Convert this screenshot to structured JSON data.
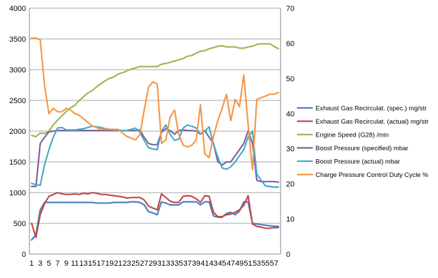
{
  "chart_data": {
    "type": "line",
    "title": "",
    "xlabel": "",
    "ylabel": "",
    "y2label": "",
    "x": [
      1,
      2,
      3,
      4,
      5,
      6,
      7,
      8,
      9,
      10,
      11,
      12,
      13,
      14,
      15,
      16,
      17,
      18,
      19,
      20,
      21,
      22,
      23,
      24,
      25,
      26,
      27,
      28,
      29,
      30,
      31,
      32,
      33,
      34,
      35,
      36,
      37,
      38,
      39,
      40,
      41,
      42,
      43,
      44,
      45,
      46,
      47,
      48,
      49,
      50,
      51,
      52,
      53,
      54,
      55,
      56,
      57,
      58
    ],
    "x_tick_labels": [
      "1",
      "3",
      "5",
      "7",
      "9",
      "11",
      "13",
      "15",
      "17",
      "19",
      "21",
      "23",
      "25",
      "27",
      "29",
      "31",
      "33",
      "35",
      "37",
      "39",
      "41",
      "43",
      "45",
      "47",
      "49",
      "51",
      "53",
      "55",
      "57"
    ],
    "ylim": [
      0,
      4000
    ],
    "yticks": [
      "0",
      "500",
      "1000",
      "1500",
      "2000",
      "2500",
      "3000",
      "3500",
      "4000"
    ],
    "y2lim": [
      0,
      70
    ],
    "y2ticks": [
      "0",
      "10",
      "20",
      "30",
      "40",
      "50",
      "60",
      "70"
    ],
    "grid": true,
    "legend_position": "right",
    "series": [
      {
        "name": "Exhaust Gas Recirculat. (spec.)  mg/str",
        "color": "#4a7ebb",
        "axis": "left",
        "values": [
          230,
          320,
          720,
          840,
          840,
          840,
          840,
          840,
          840,
          840,
          840,
          840,
          840,
          840,
          840,
          830,
          830,
          830,
          830,
          840,
          840,
          840,
          840,
          850,
          850,
          840,
          800,
          690,
          670,
          640,
          850,
          830,
          800,
          800,
          800,
          850,
          850,
          850,
          850,
          800,
          850,
          850,
          620,
          600,
          600,
          660,
          680,
          640,
          700,
          850,
          850,
          500,
          490,
          480,
          470,
          460,
          455,
          450
        ]
      },
      {
        "name": "Exhaust Gas Recirculat. (actual)  mg/str",
        "color": "#be4b48",
        "axis": "left",
        "values": [
          500,
          270,
          640,
          820,
          940,
          970,
          1000,
          980,
          970,
          970,
          980,
          970,
          990,
          980,
          1000,
          990,
          970,
          970,
          960,
          950,
          940,
          930,
          910,
          920,
          920,
          920,
          880,
          780,
          750,
          720,
          980,
          920,
          860,
          840,
          840,
          940,
          950,
          940,
          900,
          840,
          950,
          940,
          680,
          610,
          610,
          640,
          650,
          680,
          720,
          790,
          950,
          490,
          450,
          440,
          420,
          420,
          430,
          430
        ]
      },
      {
        "name": "Engine Speed (G28)  /min",
        "color": "#98b954",
        "axis": "left",
        "values": [
          1930,
          1910,
          1970,
          1960,
          2000,
          2100,
          2180,
          2250,
          2320,
          2380,
          2420,
          2500,
          2560,
          2620,
          2660,
          2720,
          2770,
          2820,
          2860,
          2880,
          2930,
          2950,
          2980,
          3010,
          3030,
          3050,
          3050,
          3050,
          3050,
          3050,
          3090,
          3100,
          3120,
          3140,
          3160,
          3180,
          3220,
          3230,
          3270,
          3300,
          3310,
          3340,
          3360,
          3380,
          3390,
          3370,
          3370,
          3370,
          3350,
          3350,
          3370,
          3380,
          3410,
          3420,
          3420,
          3420,
          3380,
          3340
        ]
      },
      {
        "name": "Boost Pressure (specified)  mbar",
        "color": "#7d60a0",
        "axis": "left",
        "values": [
          1100,
          1100,
          1800,
          1900,
          1990,
          2000,
          2010,
          2010,
          2010,
          2010,
          2010,
          2010,
          2010,
          2010,
          2010,
          2010,
          2010,
          2010,
          2010,
          2010,
          2010,
          2010,
          2010,
          2010,
          2010,
          2020,
          1900,
          1800,
          1780,
          1780,
          1980,
          2040,
          2010,
          1950,
          2010,
          2020,
          2010,
          2010,
          2000,
          1950,
          2010,
          1900,
          1800,
          1500,
          1450,
          1500,
          1500,
          1600,
          1700,
          1800,
          2000,
          1800,
          1200,
          1180,
          1180,
          1180,
          1180,
          1170
        ]
      },
      {
        "name": "Boost Pressure (actual)  mbar",
        "color": "#46aac5",
        "axis": "left",
        "values": [
          1150,
          1130,
          1120,
          1450,
          1700,
          1900,
          2050,
          2060,
          2020,
          2020,
          2020,
          2030,
          2040,
          2060,
          2080,
          2070,
          2060,
          2040,
          2030,
          2020,
          2020,
          2010,
          2010,
          2030,
          2050,
          1980,
          1850,
          1730,
          1710,
          1700,
          2000,
          2100,
          1950,
          1850,
          1870,
          2050,
          2100,
          2080,
          2050,
          1950,
          2000,
          2070,
          1790,
          1580,
          1400,
          1380,
          1420,
          1500,
          1600,
          1700,
          1900,
          2000,
          1300,
          1200,
          1110,
          1100,
          1090,
          1090
        ]
      },
      {
        "name": "Charge Pressure Control Duty Cycle  %",
        "color": "#f79646",
        "axis": "right",
        "values": [
          61.5,
          61.5,
          61,
          48,
          40,
          41.5,
          40.5,
          40.5,
          41.5,
          41,
          40,
          39.5,
          38.5,
          37.5,
          36.5,
          36,
          35.5,
          35.5,
          35.5,
          35.5,
          35.5,
          34.5,
          33.5,
          33,
          32.5,
          34,
          41,
          47.5,
          49,
          48.5,
          31.5,
          32.5,
          39,
          41,
          34,
          31,
          30.5,
          31,
          32.5,
          42.5,
          28.5,
          27.5,
          33.5,
          38,
          41.5,
          45.5,
          38,
          44,
          42,
          51,
          37,
          24,
          44,
          44.5,
          45,
          45.5,
          45.5,
          46
        ]
      }
    ]
  }
}
